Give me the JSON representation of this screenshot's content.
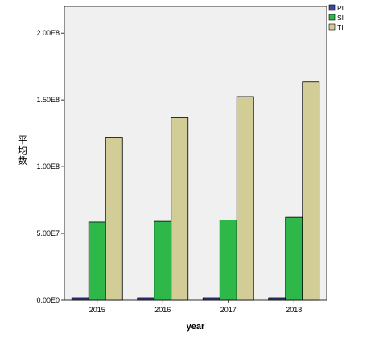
{
  "chart_data": {
    "type": "bar",
    "categories": [
      "2015",
      "2016",
      "2017",
      "2018"
    ],
    "series": [
      {
        "name": "PI",
        "color": "#3a48a0",
        "values": [
          1800000,
          1800000,
          1800000,
          1800000
        ]
      },
      {
        "name": "SI",
        "color": "#2eb84a",
        "values": [
          58500000,
          59000000,
          60000000,
          62000000
        ]
      },
      {
        "name": "TI",
        "color": "#d2cd96",
        "values": [
          122000000,
          136500000,
          152500000,
          163500000
        ]
      }
    ],
    "ylabel": "平均数",
    "xlabel": "year",
    "ylim": [
      0,
      220000000
    ],
    "yticks": [
      0,
      50000000,
      100000000,
      150000000,
      200000000
    ],
    "ytick_labels": [
      "0.00E0",
      "5.00E7",
      "1.00E8",
      "1.50E8",
      "2.00E8"
    ],
    "plot_background": "#f0f0f0",
    "legend_position": "top-right",
    "grid": false
  }
}
